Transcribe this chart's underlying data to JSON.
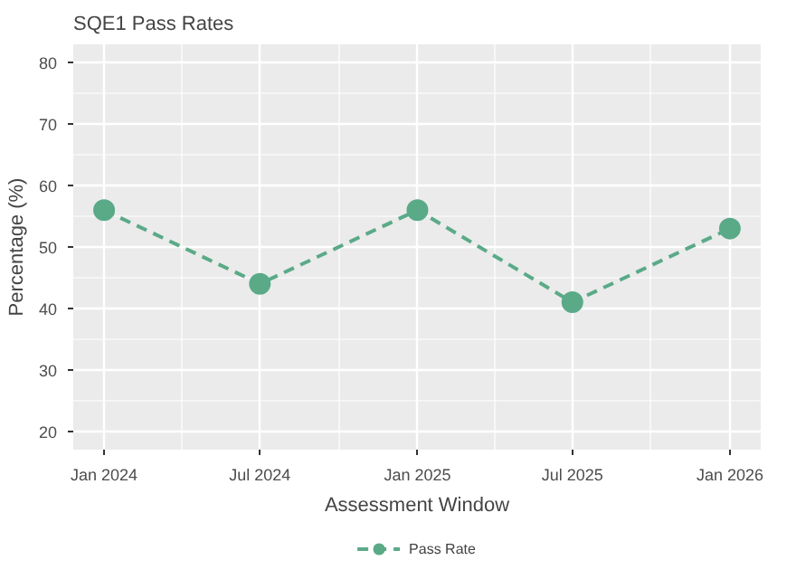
{
  "chart_data": {
    "type": "line",
    "title": "SQE1 Pass Rates",
    "xlabel": "Assessment Window",
    "ylabel": "Percentage (%)",
    "x": [
      "2024-01-01",
      "2024-07-01",
      "2025-01-01",
      "2025-07-01",
      "2026-01-01"
    ],
    "series": [
      {
        "name": "Pass Rate",
        "color": "#5aaa88",
        "values": [
          56,
          44,
          56,
          41,
          53
        ]
      }
    ],
    "xlim": [
      "2023-11-26",
      "2026-02-06"
    ],
    "xticks": [
      {
        "value": "2024-01-01",
        "label": "Jan 2024"
      },
      {
        "value": "2024-07-01",
        "label": "Jul 2024"
      },
      {
        "value": "2025-01-01",
        "label": "Jan 2025"
      },
      {
        "value": "2025-07-01",
        "label": "Jul 2025"
      },
      {
        "value": "2026-01-01",
        "label": "Jan 2026"
      }
    ],
    "ylim": [
      17,
      83
    ],
    "yticks": [
      20,
      30,
      40,
      50,
      60,
      70,
      80
    ],
    "grid": true,
    "legend": "bottom",
    "marker": "circle",
    "line_style": "dashed"
  }
}
